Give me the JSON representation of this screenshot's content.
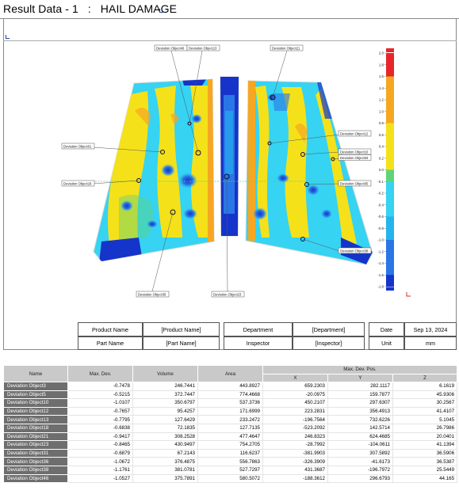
{
  "header": {
    "title": "Result Data - 1   :   HAIL DAMAGE"
  },
  "color_scale": {
    "labels": [
      "2.0",
      "1.8",
      "1.6",
      "1.4",
      "1.2",
      "1.0",
      "0.8",
      "0.6",
      "0.4",
      "0.2",
      "0.0",
      "-0.1",
      "-0.2",
      "-0.4",
      "-0.6",
      "-0.8",
      "-1.0",
      "-1.2",
      "-1.4",
      "-1.6",
      "-1.8"
    ],
    "colors": {
      "red": "#e6262b",
      "dark_blue": "#1534c9",
      "blue": "#2a76e6",
      "light_blue": "#25b4ee",
      "cyan": "#36d3f2",
      "green": "#5fd37a",
      "yellow": "#f5e11a",
      "orange": "#f6a722",
      "panel_outline": "#d8d8d8",
      "header_gray": "#c9c9c9",
      "name_cell_gray": "#6e6e6e"
    }
  },
  "callouts": {
    "obj46": "Deviation Object46",
    "obj13": "Deviation Object13",
    "obj21": "Deviation Object21",
    "obj01": "Deviation Object01",
    "obj18": "Deviation Object18",
    "obj12": "Deviation Object12",
    "obj10": "Deviation Object10",
    "obj03": "Deviation Object03",
    "obj05": "Deviation Object05",
    "obj38": "Deviation Object38",
    "obj36": "Deviation Object36",
    "obj23": "Deviation Object23"
  },
  "info": {
    "product_name_label": "Product Name",
    "product_name_value": "[Product Name]",
    "part_name_label": "Part Name",
    "part_name_value": "[Part Name]",
    "department_label": "Department",
    "department_value": "[Department]",
    "inspector_label": "Inspector",
    "inspector_value": "[Inspector]",
    "date_label": "Date",
    "date_value": "Sep 13, 2024",
    "unit_label": "Unit",
    "unit_value": "mm"
  },
  "table": {
    "headers": {
      "name": "Name",
      "max_dev": "Max. Dev.",
      "volume": "Volume",
      "area": "Area",
      "max_dev_pos": "Max. Dev. Pos.",
      "x": "X",
      "y": "Y",
      "z": "Z"
    },
    "rows": [
      {
        "name": "Deviation Object3",
        "max_dev": "-0.7478",
        "volume": "246.7441",
        "area": "443.8927",
        "x": "659.2303",
        "y": "282.1117",
        "z": "6.1619"
      },
      {
        "name": "Deviation Object5",
        "max_dev": "-0.5215",
        "volume": "372.7447",
        "area": "774.4668",
        "x": "-20.0975",
        "y": "159.7877",
        "z": "45.9306"
      },
      {
        "name": "Deviation Object10",
        "max_dev": "-1.0107",
        "volume": "350.6797",
        "area": "537.3736",
        "x": "450.2107",
        "y": "297.6307",
        "z": "30.2567"
      },
      {
        "name": "Deviation Object12",
        "max_dev": "-0.7657",
        "volume": "95.4257",
        "area": "171.6999",
        "x": "223.2831",
        "y": "356.4913",
        "z": "41.4107"
      },
      {
        "name": "Deviation Object13",
        "max_dev": "-0.7795",
        "volume": "127.6429",
        "area": "233.2472",
        "x": "-196.7564",
        "y": "732.6226",
        "z": "5.1045"
      },
      {
        "name": "Deviation Object18",
        "max_dev": "-0.6838",
        "volume": "72.1835",
        "area": "127.7135",
        "x": "-523.2092",
        "y": "142.5714",
        "z": "26.7986"
      },
      {
        "name": "Deviation Object21",
        "max_dev": "-0.9417",
        "volume": "308.2528",
        "area": "477.4647",
        "x": "246.8323",
        "y": "624.4685",
        "z": "20.0401"
      },
      {
        "name": "Deviation Object23",
        "max_dev": "-0.8465",
        "volume": "430.9497",
        "area": "754.2705",
        "x": "-28.7992",
        "y": "-104.0611",
        "z": "41.1394"
      },
      {
        "name": "Deviation Object31",
        "max_dev": "-0.6879",
        "volume": "67.2143",
        "area": "116.6237",
        "x": "-381.9903",
        "y": "307.5892",
        "z": "36.5906"
      },
      {
        "name": "Deviation Object36",
        "max_dev": "-1.0672",
        "volume": "376.4875",
        "area": "556.7863",
        "x": "-326.3909",
        "y": "-41.6173",
        "z": "36.5387"
      },
      {
        "name": "Deviation Object38",
        "max_dev": "-1.1761",
        "volume": "381.0781",
        "area": "527.7297",
        "x": "431.3687",
        "y": "-196.7972",
        "z": "25.5449"
      },
      {
        "name": "Deviation Object46",
        "max_dev": "-1.0527",
        "volume": "375.7891",
        "area": "580.5072",
        "x": "-188.3612",
        "y": "296.6793",
        "z": "44.165"
      }
    ]
  }
}
